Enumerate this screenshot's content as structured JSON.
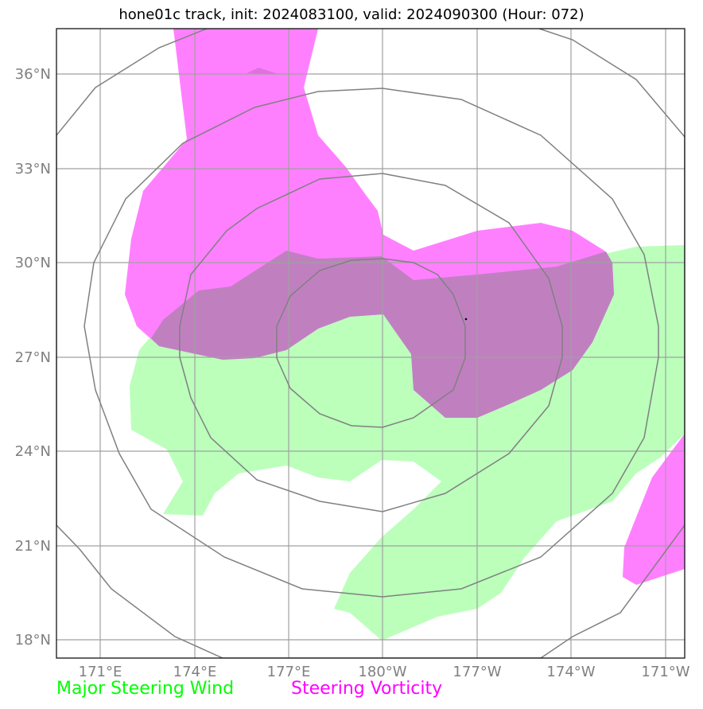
{
  "title": "hone01c track, init: 2024083100, valid: 2024090300 (Hour: 072)",
  "axes": {
    "lat_ticks": [
      "36°N",
      "33°N",
      "30°N",
      "27°N",
      "24°N",
      "21°N",
      "18°N"
    ],
    "lon_ticks": [
      "171°E",
      "174°E",
      "177°E",
      "180°W",
      "177°W",
      "174°W",
      "171°W"
    ]
  },
  "legend": {
    "wind_label": "Major Steering Wind",
    "vorticity_label": "Steering Vorticity"
  },
  "colors": {
    "wind": "#00ff00",
    "wind_fill": "#bbffbb",
    "vorticity": "#ff00ff",
    "vorticity_fill": "#ff80ff",
    "overlap_fill": "#c080c0",
    "grid": "#a0a0a0",
    "range_rings": "#808080"
  },
  "storm_center": {
    "lat": 28.2,
    "lon": "177.3°W"
  }
}
